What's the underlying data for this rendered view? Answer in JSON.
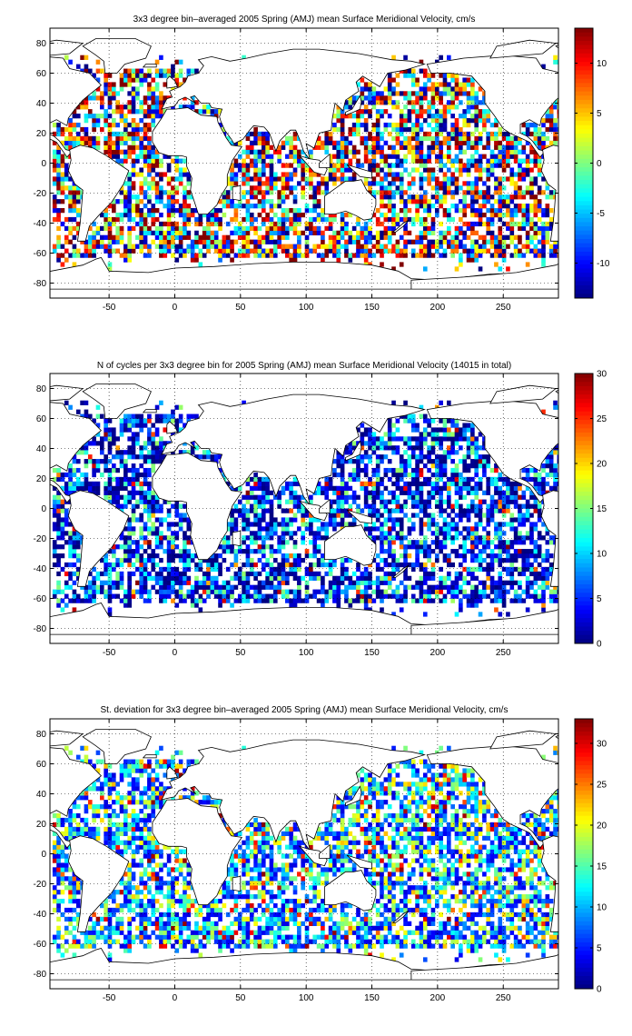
{
  "chart_data": [
    {
      "type": "heatmap",
      "title": "3x3 degree bin–averaged 2005 Spring (AMJ) mean Surface Meridional Velocity, cm/s",
      "xlabel": "",
      "ylabel": "",
      "xlim": [
        -95,
        292
      ],
      "ylim": [
        -90,
        90
      ],
      "xticks": [
        "-50",
        "0",
        "50",
        "100",
        "150",
        "200",
        "250"
      ],
      "xtick_values": [
        -50,
        0,
        50,
        100,
        150,
        200,
        250
      ],
      "yticks": [
        "80",
        "60",
        "40",
        "20",
        "0",
        "-20",
        "-40",
        "-60",
        "-80"
      ],
      "ytick_values": [
        80,
        60,
        40,
        20,
        0,
        -20,
        -40,
        -60,
        -80
      ],
      "colorbar": {
        "range": [
          -13.5,
          13.5
        ],
        "ticks": [
          "10",
          "5",
          "0",
          "-5",
          "-10"
        ],
        "tick_values": [
          10,
          5,
          0,
          -5,
          -10
        ]
      },
      "colormap": "jet",
      "bin_size_deg": 3,
      "grid": "dotted"
    },
    {
      "type": "heatmap",
      "title": "N of cycles per 3x3 degree bin for 2005 Spring (AMJ) mean Surface Meridional Velocity (14015 in total)",
      "xlabel": "",
      "ylabel": "",
      "xlim": [
        -95,
        292
      ],
      "ylim": [
        -90,
        90
      ],
      "xticks": [
        "-50",
        "0",
        "50",
        "100",
        "150",
        "200",
        "250"
      ],
      "xtick_values": [
        -50,
        0,
        50,
        100,
        150,
        200,
        250
      ],
      "yticks": [
        "80",
        "60",
        "40",
        "20",
        "0",
        "-20",
        "-40",
        "-60",
        "-80"
      ],
      "ytick_values": [
        80,
        60,
        40,
        20,
        0,
        -20,
        -40,
        -60,
        -80
      ],
      "colorbar": {
        "range": [
          0,
          30
        ],
        "ticks": [
          "30",
          "25",
          "20",
          "15",
          "10",
          "5",
          "0"
        ],
        "tick_values": [
          30,
          25,
          20,
          15,
          10,
          5,
          0
        ]
      },
      "colormap": "jet",
      "bin_size_deg": 3,
      "grid": "dotted"
    },
    {
      "type": "heatmap",
      "title": "St. deviation for 3x3 degree bin–averaged 2005 Spring (AMJ) mean Surface Meridional Velocity, cm/s",
      "xlabel": "",
      "ylabel": "",
      "xlim": [
        -95,
        292
      ],
      "ylim": [
        -90,
        90
      ],
      "xticks": [
        "-50",
        "0",
        "50",
        "100",
        "150",
        "200",
        "250"
      ],
      "xtick_values": [
        -50,
        0,
        50,
        100,
        150,
        200,
        250
      ],
      "yticks": [
        "80",
        "60",
        "40",
        "20",
        "0",
        "-20",
        "-40",
        "-60",
        "-80"
      ],
      "ytick_values": [
        80,
        60,
        40,
        20,
        0,
        -20,
        -40,
        -60,
        -80
      ],
      "colorbar": {
        "range": [
          0,
          33
        ],
        "ticks": [
          "30",
          "25",
          "20",
          "15",
          "10",
          "5",
          "0"
        ],
        "tick_values": [
          30,
          25,
          20,
          15,
          10,
          5,
          0
        ]
      },
      "colormap": "jet",
      "bin_size_deg": 3,
      "grid": "dotted"
    }
  ]
}
